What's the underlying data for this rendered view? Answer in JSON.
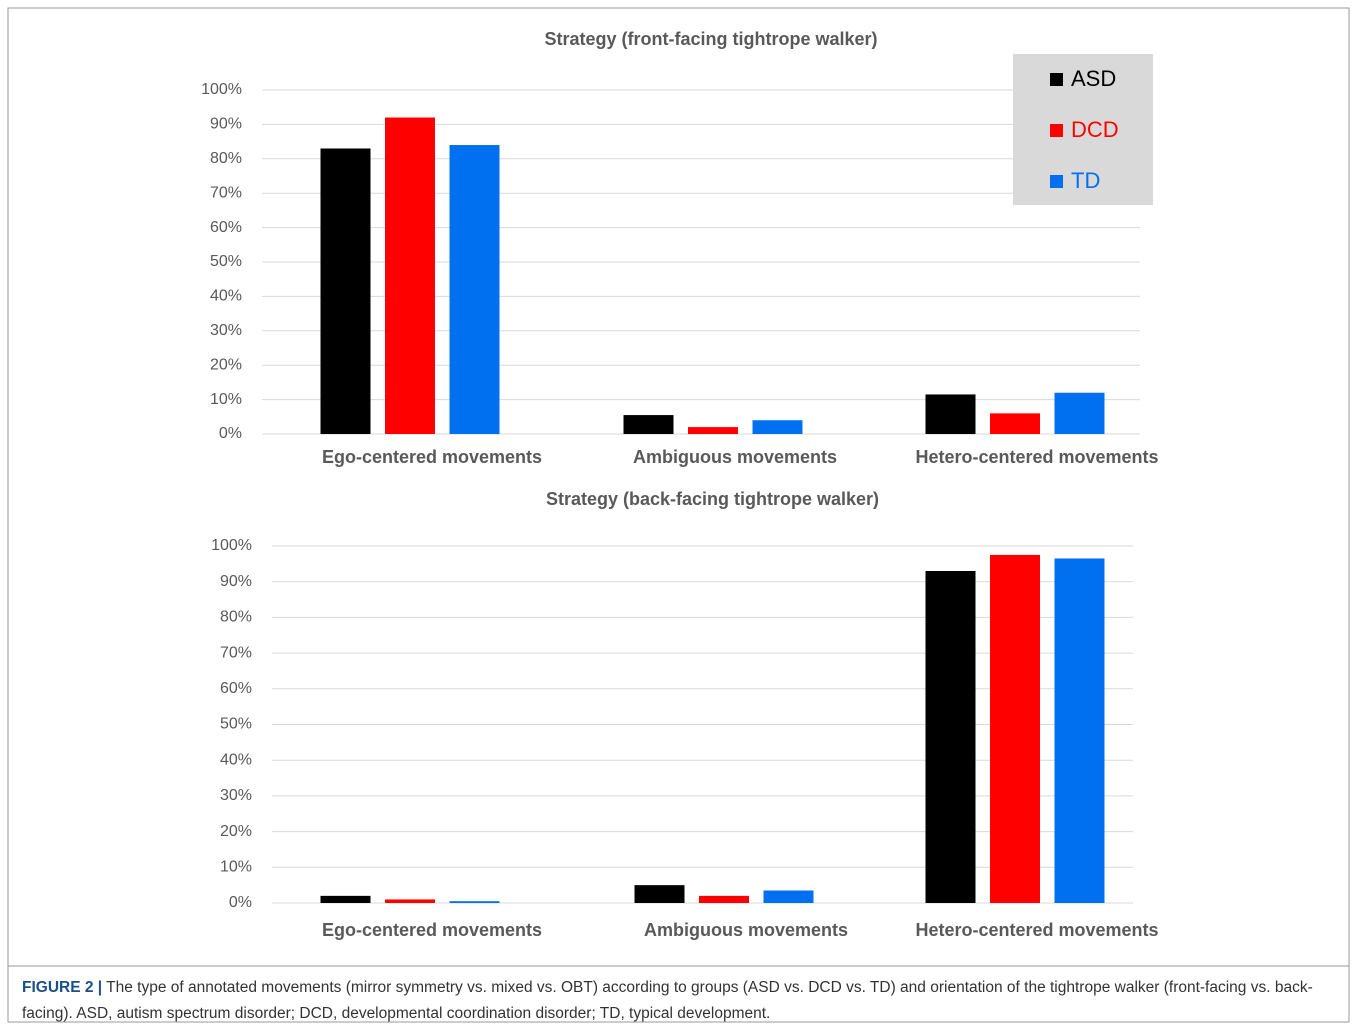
{
  "chart_data": [
    {
      "type": "bar",
      "title": "Strategy (front-facing tightrope walker)",
      "categories": [
        "Ego-centered movements",
        "Ambiguous movements",
        "Hetero-centered movements"
      ],
      "series": [
        {
          "name": "ASD",
          "color": "#000000",
          "values": [
            83,
            5.5,
            11.5
          ]
        },
        {
          "name": "DCD",
          "color": "#ff0000",
          "values": [
            92,
            2,
            6
          ]
        },
        {
          "name": "TD",
          "color": "#0070f0",
          "values": [
            84,
            4,
            12
          ]
        }
      ],
      "ylim": [
        0,
        100
      ],
      "yticks": [
        {
          "value": 0,
          "label": "0%"
        },
        {
          "value": 10,
          "label": "10%"
        },
        {
          "value": 20,
          "label": "20%"
        },
        {
          "value": 30,
          "label": "30%"
        },
        {
          "value": 40,
          "label": "40%"
        },
        {
          "value": 50,
          "label": "50%"
        },
        {
          "value": 60,
          "label": "60%"
        },
        {
          "value": 70,
          "label": "70%"
        },
        {
          "value": 80,
          "label": "80%"
        },
        {
          "value": 90,
          "label": "90%"
        },
        {
          "value": 100,
          "label": "100%"
        }
      ],
      "grid": true,
      "legend": "top-right"
    },
    {
      "type": "bar",
      "title": "Strategy (back-facing tightrope walker)",
      "categories": [
        "Ego-centered movements",
        "Ambiguous movements",
        "Hetero-centered movements"
      ],
      "series": [
        {
          "color": "#000000",
          "values": [
            2,
            5,
            93
          ]
        },
        {
          "color": "#ff0000",
          "values": [
            1,
            2,
            97.5
          ]
        },
        {
          "color": "#0070f0",
          "values": [
            0.5,
            3.5,
            96.5
          ]
        }
      ],
      "ylim": [
        0,
        100
      ],
      "yticks": [
        {
          "value": 0,
          "label": "0%"
        },
        {
          "value": 10,
          "label": "10%"
        },
        {
          "value": 20,
          "label": "20%"
        },
        {
          "value": 30,
          "label": "30%"
        },
        {
          "value": 40,
          "label": "40%"
        },
        {
          "value": 50,
          "label": "50%"
        },
        {
          "value": 60,
          "label": "60%"
        },
        {
          "value": 70,
          "label": "70%"
        },
        {
          "value": 80,
          "label": "80%"
        },
        {
          "value": 90,
          "label": "90%"
        },
        {
          "value": 100,
          "label": "100%"
        }
      ],
      "grid": true
    }
  ],
  "caption": {
    "label": "FIGURE 2 |",
    "text": "The type of annotated movements (mirror symmetry vs. mixed vs. OBT) according to groups (ASD vs. DCD vs. TD) and orientation of the tightrope walker (front-facing vs. back-facing). ASD, autism spectrum disorder; DCD, developmental coordination disorder; TD, typical development."
  }
}
